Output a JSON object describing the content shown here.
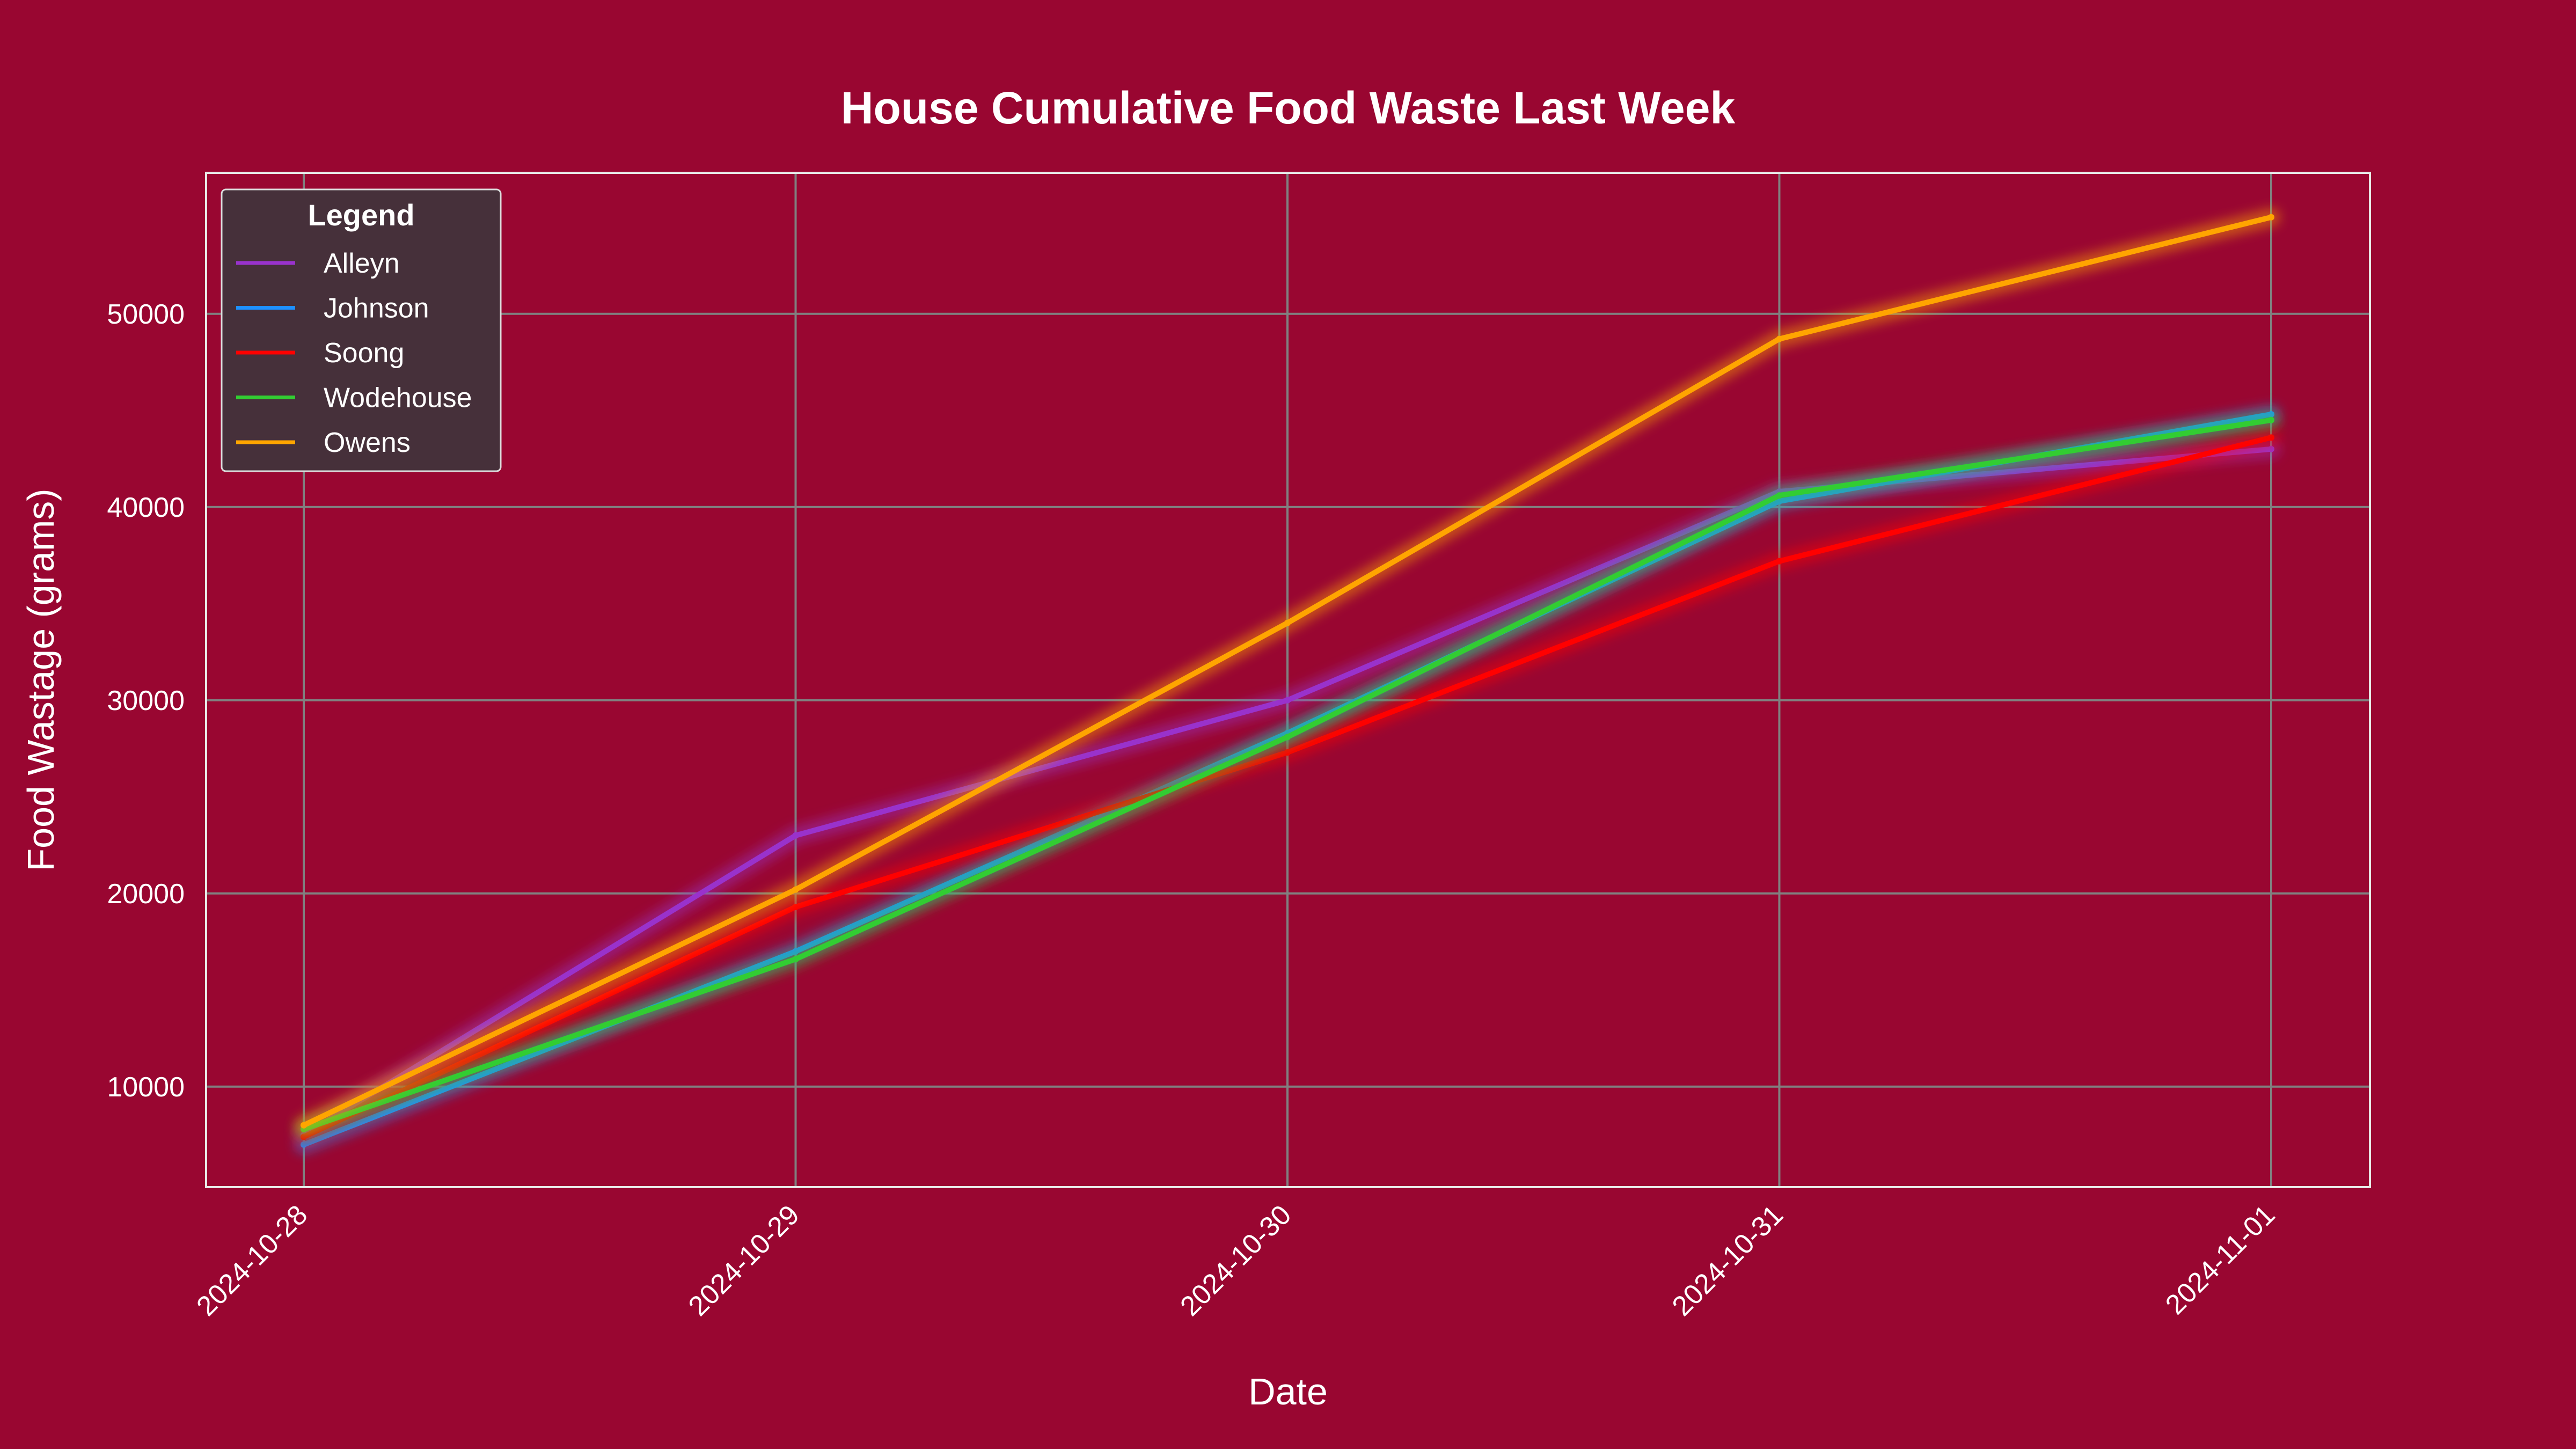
{
  "chart_data": {
    "type": "line",
    "title": "House Cumulative Food Waste Last Week",
    "xlabel": "Date",
    "ylabel": "Food Wastage (grams)",
    "categories": [
      "2024-10-28",
      "2024-10-29",
      "2024-10-30",
      "2024-10-31",
      "2024-11-01"
    ],
    "ylim": [
      4800,
      57300
    ],
    "yticks": [
      10000,
      20000,
      30000,
      40000,
      50000
    ],
    "grid": true,
    "legend": {
      "title": "Legend",
      "placement": "top-left"
    },
    "series": [
      {
        "name": "Alleyn",
        "color": "#9932cc",
        "values": [
          7500,
          23000,
          30000,
          40800,
          43000
        ]
      },
      {
        "name": "Johnson",
        "color": "#1e90ff",
        "values": [
          7000,
          17000,
          28300,
          40300,
          44800
        ]
      },
      {
        "name": "Soong",
        "color": "#ff0000",
        "values": [
          7400,
          19300,
          27300,
          37200,
          43600
        ]
      },
      {
        "name": "Wodehouse",
        "color": "#32cd32",
        "values": [
          7800,
          16600,
          28100,
          40600,
          44500
        ]
      },
      {
        "name": "Owens",
        "color": "#ffa500",
        "values": [
          8000,
          20200,
          34000,
          48700,
          55000
        ]
      }
    ]
  }
}
